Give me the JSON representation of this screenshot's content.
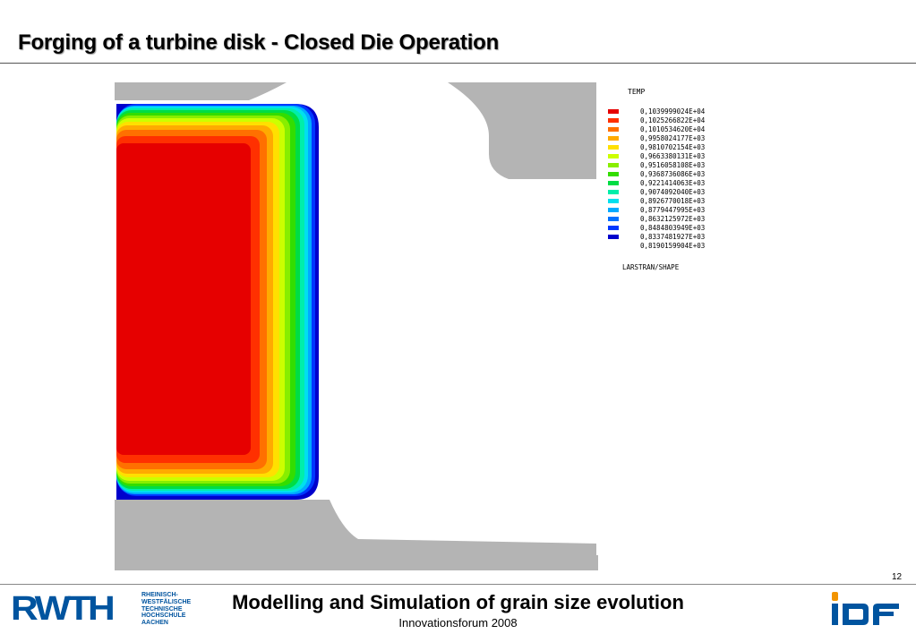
{
  "slide": {
    "title": "Forging of a turbine disk - Closed Die Operation",
    "page_number": "12"
  },
  "legend": {
    "title": "TEMP",
    "source": "LARSTRAN/SHAPE",
    "entries": [
      {
        "label": "0,1039999024E+04",
        "color": "#e60000"
      },
      {
        "label": "0,1025266822E+04",
        "color": "#ff3000"
      },
      {
        "label": "0,1010534620E+04",
        "color": "#ff7000"
      },
      {
        "label": "0,9958024177E+03",
        "color": "#ffaa00"
      },
      {
        "label": "0,9810702154E+03",
        "color": "#ffe000"
      },
      {
        "label": "0,9663380131E+03",
        "color": "#ccff00"
      },
      {
        "label": "0,9516058108E+03",
        "color": "#88ee00"
      },
      {
        "label": "0,9368736086E+03",
        "color": "#33dd00"
      },
      {
        "label": "0,9221414063E+03",
        "color": "#00dd44"
      },
      {
        "label": "0,9074092040E+03",
        "color": "#00eeaa"
      },
      {
        "label": "0,8926770018E+03",
        "color": "#00e0ee"
      },
      {
        "label": "0,8779447995E+03",
        "color": "#00aaff"
      },
      {
        "label": "0,8632125972E+03",
        "color": "#0070ff"
      },
      {
        "label": "0,8484803949E+03",
        "color": "#0038ff"
      },
      {
        "label": "0,8337481927E+03",
        "color": "#0000cc"
      },
      {
        "label": "0,8190159904E+03",
        "color": ""
      }
    ]
  },
  "footer": {
    "title": "Modelling and Simulation of grain size evolution",
    "subtitle": "Innovationsforum 2008",
    "rwth_mark": "RWTH",
    "rwth_subtitle": "RHEINISCH-\nWESTFÄLISCHE\nTECHNISCHE\nHOCHSCHULE\nAACHEN"
  },
  "colors": {
    "die": "#b4b4b4",
    "rwth_blue": "#00549f",
    "ibf_blue": "#00549f",
    "ibf_orange": "#f29400"
  }
}
